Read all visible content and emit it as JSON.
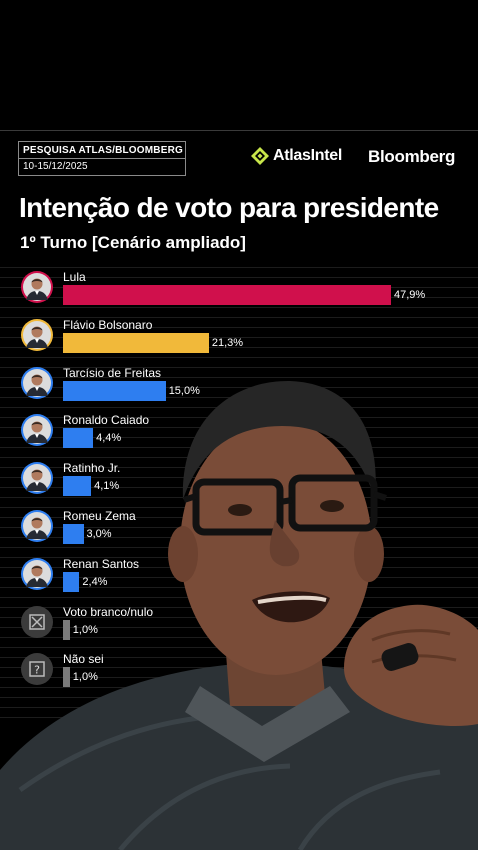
{
  "header": {
    "survey_label": "PESQUISA ATLAS/BLOOMBERG",
    "date_label": "10-15/12/2025",
    "logo_atlas": "AtlasIntel",
    "logo_bloomberg": "Bloomberg"
  },
  "colors": {
    "lula": "#d0104c",
    "flavio": "#f1b93a",
    "candidate": "#2e7ef0",
    "neutral": "#7a7a7a"
  },
  "chart_data": {
    "type": "bar",
    "orientation": "horizontal",
    "title": "Intenção de voto para presidente",
    "subtitle": "1º Turno [Cenário ampliado]",
    "categories": [
      "Lula",
      "Flávio Bolsonaro",
      "Tarcísio de Freitas",
      "Ronaldo Caiado",
      "Ratinho Jr.",
      "Romeu Zema",
      "Renan Santos",
      "Voto branco/nulo",
      "Não sei"
    ],
    "values": [
      47.9,
      21.3,
      15.0,
      4.4,
      4.1,
      3.0,
      2.4,
      1.0,
      1.0
    ],
    "value_labels": [
      "47,9%",
      "21,3%",
      "15,0%",
      "4,4%",
      "4,1%",
      "3,0%",
      "2,4%",
      "1,0%",
      "1,0%"
    ],
    "bar_colors": [
      "#d0104c",
      "#f1b93a",
      "#2e7ef0",
      "#2e7ef0",
      "#2e7ef0",
      "#2e7ef0",
      "#2e7ef0",
      "#7a7a7a",
      "#7a7a7a"
    ],
    "icons": [
      "lula-avatar",
      "flavio-bolsonaro-avatar",
      "tarcisio-de-freitas-avatar",
      "ronaldo-caiado-avatar",
      "ratinho-jr-avatar",
      "romeu-zema-avatar",
      "renan-santos-avatar",
      "ballot-x-icon",
      "question-mark-icon"
    ],
    "avatar_ring_colors": [
      "#d0104c",
      "#f1b93a",
      "#2e7ef0",
      "#2e7ef0",
      "#2e7ef0",
      "#2e7ef0",
      "#2e7ef0",
      "#7a7a7a",
      "#7a7a7a"
    ],
    "xlim": [
      0,
      50
    ],
    "grid": false,
    "legend": "none"
  }
}
